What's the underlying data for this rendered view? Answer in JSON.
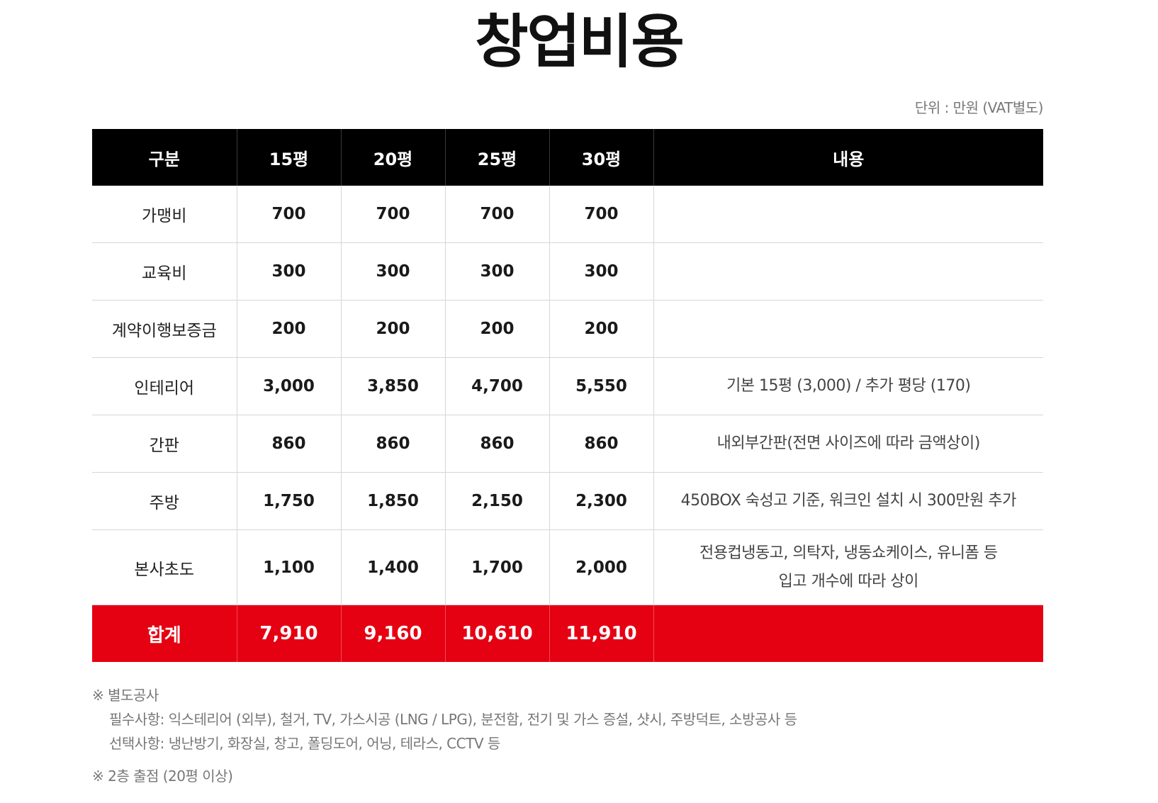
{
  "title": "창업비용",
  "unit_note": "단위 : 만원 (VAT별도)",
  "table": {
    "headers": [
      "구분",
      "15평",
      "20평",
      "25평",
      "30평",
      "내용"
    ],
    "rows": [
      {
        "label": "가맹비",
        "values": [
          "700",
          "700",
          "700",
          "700"
        ],
        "desc": []
      },
      {
        "label": "교육비",
        "values": [
          "300",
          "300",
          "300",
          "300"
        ],
        "desc": []
      },
      {
        "label": "계약이행보증금",
        "values": [
          "200",
          "200",
          "200",
          "200"
        ],
        "desc": []
      },
      {
        "label": "인테리어",
        "values": [
          "3,000",
          "3,850",
          "4,700",
          "5,550"
        ],
        "desc": [
          "기본 15평 (3,000) / 추가 평당 (170)"
        ]
      },
      {
        "label": "간판",
        "values": [
          "860",
          "860",
          "860",
          "860"
        ],
        "desc": [
          "내외부간판(전면 사이즈에 따라 금액상이)"
        ]
      },
      {
        "label": "주방",
        "values": [
          "1,750",
          "1,850",
          "2,150",
          "2,300"
        ],
        "desc": [
          "450BOX 숙성고 기준, 워크인 설치 시 300만원 추가"
        ]
      },
      {
        "label": "본사초도",
        "values": [
          "1,100",
          "1,400",
          "1,700",
          "2,000"
        ],
        "desc": [
          "전용컵냉동고, 의탁자, 냉동쇼케이스, 유니폼 등",
          "입고 개수에 따라 상이"
        ]
      }
    ],
    "total": {
      "label": "합계",
      "values": [
        "7,910",
        "9,160",
        "10,610",
        "11,910"
      ],
      "desc": ""
    }
  },
  "notes": {
    "extra_work_title": "※ 별도공사",
    "required": "필수사항: 익스테리어 (외부), 철거, TV, 가스시공 (LNG / LPG), 분전함, 전기 및 가스 증설, 샷시, 주방덕트, 소방공사 등",
    "optional": "선택사항: 냉난방기, 화장실, 창고, 폴딩도어, 어닝, 테라스, CCTV 등",
    "second_floor": "※ 2층 출점 (20평 이상)"
  },
  "colors": {
    "header_bg": "#000000",
    "total_bg": "#e50012",
    "note_text": "#777777",
    "grid_line": "#d6d6d6"
  }
}
